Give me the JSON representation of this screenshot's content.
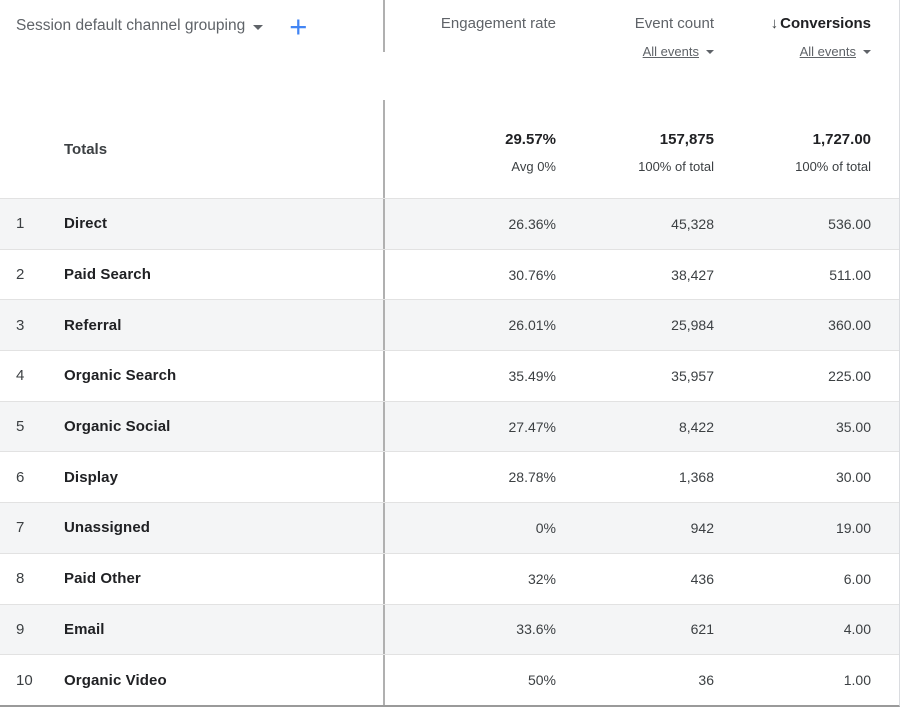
{
  "dimension": {
    "label": "Session default channel grouping"
  },
  "columns": {
    "engagement": {
      "label": "Engagement rate"
    },
    "events": {
      "label": "Event count",
      "filter": "All events"
    },
    "conversions": {
      "label": "Conversions",
      "filter": "All events",
      "sort": "descending"
    }
  },
  "totals": {
    "label": "Totals",
    "engagement_value": "29.57%",
    "engagement_sub": "Avg 0%",
    "events_value": "157,875",
    "events_sub": "100% of total",
    "conversions_value": "1,727.00",
    "conversions_sub": "100% of total"
  },
  "rows": [
    {
      "num": "1",
      "name": "Direct",
      "engagement": "26.36%",
      "events": "45,328",
      "conversions": "536.00"
    },
    {
      "num": "2",
      "name": "Paid Search",
      "engagement": "30.76%",
      "events": "38,427",
      "conversions": "511.00"
    },
    {
      "num": "3",
      "name": "Referral",
      "engagement": "26.01%",
      "events": "25,984",
      "conversions": "360.00"
    },
    {
      "num": "4",
      "name": "Organic Search",
      "engagement": "35.49%",
      "events": "35,957",
      "conversions": "225.00"
    },
    {
      "num": "5",
      "name": "Organic Social",
      "engagement": "27.47%",
      "events": "8,422",
      "conversions": "35.00"
    },
    {
      "num": "6",
      "name": "Display",
      "engagement": "28.78%",
      "events": "1,368",
      "conversions": "30.00"
    },
    {
      "num": "7",
      "name": "Unassigned",
      "engagement": "0%",
      "events": "942",
      "conversions": "19.00"
    },
    {
      "num": "8",
      "name": "Paid Other",
      "engagement": "32%",
      "events": "436",
      "conversions": "6.00"
    },
    {
      "num": "9",
      "name": "Email",
      "engagement": "33.6%",
      "events": "621",
      "conversions": "4.00"
    },
    {
      "num": "10",
      "name": "Organic Video",
      "engagement": "50%",
      "events": "36",
      "conversions": "1.00"
    }
  ],
  "icons": {
    "plus-icon": "+",
    "sort-descending-icon": "↓",
    "dropdown-caret-icon": "triangle-down",
    "filter-caret-icon": "triangle-down"
  },
  "colors": {
    "accent_blue": "#4285f4",
    "alt_row_bg": "#f4f5f6",
    "dark_text": "#202124",
    "gray_text": "#5f6368",
    "divider_gray": "#b0b0b0"
  }
}
